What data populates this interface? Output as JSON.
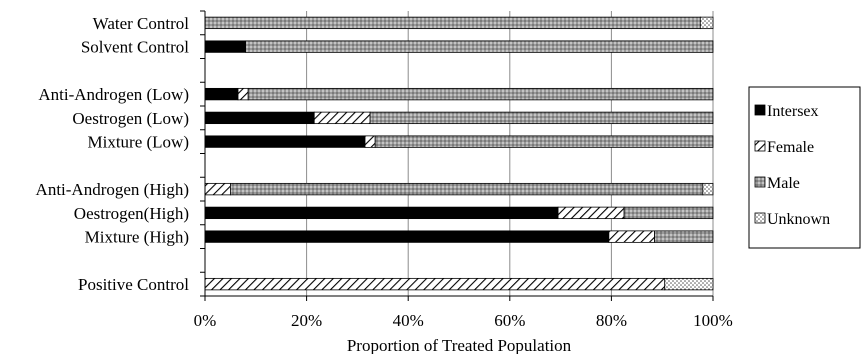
{
  "chart_data": {
    "type": "bar",
    "orientation": "horizontal",
    "stacked": true,
    "title": "",
    "xlabel": "Proportion of Treated Population",
    "ylabel": "",
    "xlim": [
      0,
      100
    ],
    "x_ticks": [
      "0%",
      "20%",
      "40%",
      "60%",
      "80%",
      "100%"
    ],
    "grid": "vertical",
    "legend_position": "right",
    "categories": [
      "Water Control",
      "Solvent Control",
      "",
      "Anti-Androgen (Low)",
      "Oestrogen (Low)",
      "Mixture (Low)",
      "",
      "Anti-Androgen (High)",
      "Oestrogen(High)",
      "Mixture (High)",
      "",
      "Positive Control"
    ],
    "series": [
      {
        "name": "Intersex",
        "pattern": "solid",
        "color": "#000000",
        "values": [
          0,
          8,
          null,
          6.5,
          21.5,
          31.5,
          null,
          0,
          69.5,
          79.5,
          null,
          0
        ]
      },
      {
        "name": "Female",
        "pattern": "diagonal",
        "color": "#000000",
        "values": [
          0,
          0,
          null,
          2,
          11,
          2,
          null,
          5,
          13,
          9,
          null,
          90.5
        ]
      },
      {
        "name": "Male",
        "pattern": "crosshatch",
        "color": "#9a9a9a",
        "values": [
          97.5,
          92,
          null,
          91.5,
          67.5,
          66.5,
          null,
          93,
          17.5,
          11.5,
          null,
          0
        ]
      },
      {
        "name": "Unknown",
        "pattern": "dotted",
        "color": "#bdbdbd",
        "values": [
          2.5,
          0,
          null,
          0,
          0,
          0,
          null,
          2,
          0,
          0,
          null,
          9.5
        ]
      }
    ]
  }
}
